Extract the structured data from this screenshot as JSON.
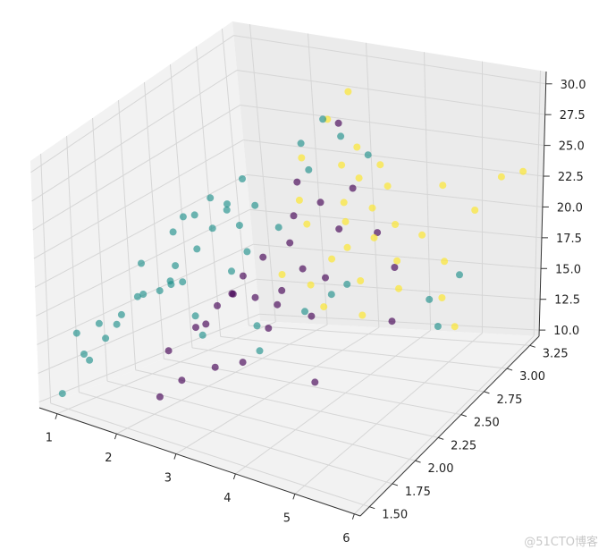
{
  "chart_data": {
    "type": "scatter",
    "projection": "3d",
    "title": "",
    "xlabel": "",
    "ylabel": "",
    "zlabel": "",
    "xlim": [
      0.7,
      6.1
    ],
    "ylim": [
      1.4,
      3.35
    ],
    "zlim": [
      9.5,
      31
    ],
    "x_ticks": [
      "1",
      "2",
      "3",
      "4",
      "5",
      "6"
    ],
    "y_ticks": [
      "1.50",
      "1.75",
      "2.00",
      "2.25",
      "2.50",
      "2.75",
      "3.00",
      "3.25"
    ],
    "z_ticks": [
      "10.0",
      "12.5",
      "15.0",
      "17.5",
      "20.0",
      "22.5",
      "25.0",
      "27.5",
      "30.0"
    ],
    "grid": true,
    "colors": {
      "purple": "#440154",
      "teal": "#21918c",
      "yellow": "#fde725"
    },
    "series": [
      {
        "color": "purple",
        "points": [
          [
            2.6,
            2.2,
            17.5
          ],
          [
            2.8,
            2.3,
            16.9
          ],
          [
            2.4,
            2.6,
            18.2
          ],
          [
            2.9,
            2.5,
            16.5
          ],
          [
            2.5,
            2.1,
            17.0
          ],
          [
            3.0,
            2.4,
            16.0
          ],
          [
            2.7,
            2.7,
            19.0
          ],
          [
            2.2,
            2.4,
            16.2
          ],
          [
            2.3,
            2.0,
            15.6
          ],
          [
            3.1,
            2.6,
            17.8
          ],
          [
            2.6,
            2.8,
            20.5
          ],
          [
            2.9,
            2.9,
            21.2
          ],
          [
            2.1,
            2.2,
            14.7
          ],
          [
            3.2,
            2.2,
            15.4
          ],
          [
            2.5,
            2.9,
            22.5
          ],
          [
            3.4,
            2.8,
            20.0
          ],
          [
            2.0,
            1.9,
            13.9
          ],
          [
            3.5,
            2.6,
            17.4
          ],
          [
            2.4,
            1.8,
            12.5
          ],
          [
            2.8,
            1.9,
            13.5
          ],
          [
            3.3,
            3.0,
            22.0
          ],
          [
            2.2,
            1.7,
            11.4
          ],
          [
            3.6,
            2.4,
            15.6
          ],
          [
            3.0,
            3.05,
            26.5
          ],
          [
            4.2,
            2.9,
            17.0
          ],
          [
            4.5,
            2.7,
            14.2
          ],
          [
            3.9,
            2.9,
            19.5
          ],
          [
            2.6,
            2.3,
            18.4
          ],
          [
            3.1,
            2.0,
            13.7
          ],
          [
            4.0,
            2.2,
            12.0
          ]
        ]
      },
      {
        "color": "teal",
        "points": [
          [
            1.1,
            1.4,
            11.4
          ],
          [
            1.2,
            1.6,
            13.5
          ],
          [
            1.3,
            1.7,
            15.0
          ],
          [
            1.5,
            1.7,
            16.4
          ],
          [
            1.4,
            1.8,
            16.6
          ],
          [
            1.6,
            1.9,
            18.0
          ],
          [
            1.7,
            2.0,
            17.9
          ],
          [
            1.8,
            2.1,
            19.5
          ],
          [
            1.9,
            2.0,
            18.6
          ],
          [
            1.6,
            2.2,
            21.5
          ],
          [
            1.8,
            2.3,
            22.5
          ],
          [
            2.0,
            2.2,
            20.5
          ],
          [
            2.1,
            2.3,
            21.7
          ],
          [
            1.9,
            2.4,
            23.4
          ],
          [
            2.0,
            2.5,
            22.5
          ],
          [
            2.2,
            2.5,
            21.0
          ],
          [
            2.3,
            2.6,
            22.1
          ],
          [
            1.7,
            2.1,
            18.2
          ],
          [
            2.4,
            2.3,
            18.6
          ],
          [
            2.5,
            2.4,
            19.7
          ],
          [
            1.5,
            1.9,
            17.7
          ],
          [
            2.1,
            2.6,
            24.0
          ],
          [
            1.4,
            2.0,
            19.8
          ],
          [
            2.7,
            2.6,
            20.7
          ],
          [
            2.9,
            2.8,
            24.2
          ],
          [
            3.0,
            2.9,
            27.6
          ],
          [
            2.6,
            2.9,
            25.5
          ],
          [
            3.3,
            2.9,
            26.5
          ],
          [
            2.3,
            2.0,
            16.5
          ],
          [
            2.6,
            1.9,
            15.8
          ],
          [
            3.0,
            2.2,
            15.4
          ],
          [
            3.6,
            2.6,
            16.2
          ],
          [
            3.7,
            2.7,
            16.5
          ],
          [
            3.3,
            2.5,
            15.2
          ],
          [
            5.0,
            2.8,
            15.6
          ],
          [
            5.2,
            3.0,
            16.4
          ],
          [
            5.5,
            2.6,
            15.1
          ],
          [
            3.4,
            2.0,
            14.9
          ],
          [
            1.3,
            1.5,
            14.6
          ],
          [
            1.0,
            1.6,
            15.5
          ],
          [
            1.2,
            1.7,
            16.1
          ],
          [
            1.6,
            2.3,
            22.2
          ],
          [
            3.5,
            3.05,
            24.4
          ],
          [
            1.8,
            2.6,
            21.4
          ],
          [
            2.1,
            2.0,
            19.0
          ]
        ]
      },
      {
        "color": "yellow",
        "points": [
          [
            2.6,
            2.9,
            24.4
          ],
          [
            2.9,
            3.0,
            27.0
          ],
          [
            3.1,
            3.1,
            28.7
          ],
          [
            3.3,
            2.9,
            24.3
          ],
          [
            3.4,
            3.0,
            25.2
          ],
          [
            3.5,
            2.8,
            22.1
          ],
          [
            3.6,
            2.9,
            23.5
          ],
          [
            3.8,
            3.0,
            24.1
          ],
          [
            3.7,
            2.7,
            21.3
          ],
          [
            4.0,
            2.8,
            22.0
          ],
          [
            4.1,
            2.9,
            23.2
          ],
          [
            3.9,
            2.6,
            20.0
          ],
          [
            4.2,
            2.7,
            20.4
          ],
          [
            4.4,
            2.8,
            21.0
          ],
          [
            4.3,
            2.5,
            18.3
          ],
          [
            4.6,
            2.7,
            18.9
          ],
          [
            4.8,
            2.6,
            17.5
          ],
          [
            3.6,
            2.4,
            18.0
          ],
          [
            3.8,
            2.5,
            19.6
          ],
          [
            4.0,
            2.3,
            17.2
          ],
          [
            4.5,
            2.4,
            16.4
          ],
          [
            5.3,
            3.1,
            20.9
          ],
          [
            5.6,
            3.2,
            23.1
          ],
          [
            5.9,
            3.25,
            23.4
          ],
          [
            5.4,
            2.7,
            16.6
          ],
          [
            5.8,
            2.6,
            15.3
          ],
          [
            4.9,
            3.0,
            23.2
          ],
          [
            3.2,
            2.6,
            21.3
          ],
          [
            2.9,
            2.7,
            22.4
          ],
          [
            3.1,
            2.4,
            18.4
          ],
          [
            4.7,
            2.9,
            19.8
          ],
          [
            5.1,
            2.9,
            18.0
          ]
        ]
      }
    ]
  },
  "watermark": "@51CTO博客"
}
